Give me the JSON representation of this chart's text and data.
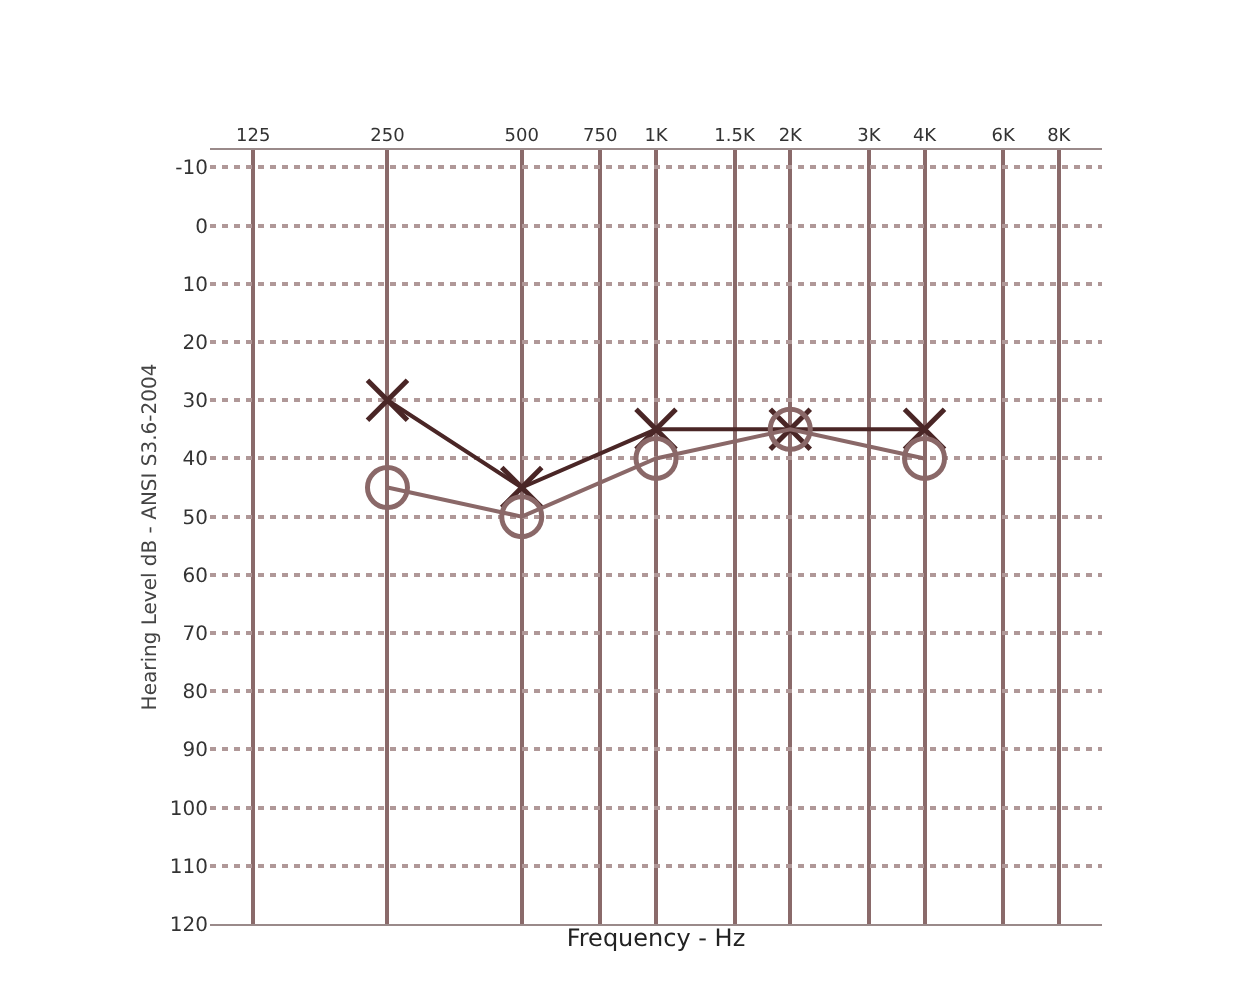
{
  "chart_data": {
    "type": "line",
    "xlabel": "Frequency - Hz",
    "ylabel": "Hearing Level dB - ANSI S3.6-2004",
    "x": [
      250,
      500,
      1000,
      2000,
      4000
    ],
    "series": [
      {
        "color": "#4a2626",
        "values": [
          30,
          45,
          35,
          35,
          35
        ],
        "marker": "cross"
      },
      {
        "color": "#8a6868",
        "values": [
          45,
          50,
          40,
          35,
          40
        ],
        "marker": "circle"
      }
    ],
    "log": "x",
    "xlim": [
      100,
      10000
    ],
    "xticks": [
      125,
      250,
      500,
      750,
      {
        "value": 1000,
        "label": "1K"
      },
      {
        "value": 1500,
        "label": "1.5K"
      },
      {
        "value": 2000,
        "label": "2K"
      },
      {
        "value": 3000,
        "label": "3K"
      },
      {
        "value": 4000,
        "label": "4K"
      },
      {
        "value": 6000,
        "label": "6K"
      },
      {
        "value": 8000,
        "label": "8K"
      }
    ],
    "ylim": [
      120,
      -13
    ],
    "yticks": [
      -10,
      0,
      10,
      20,
      30,
      40,
      50,
      60,
      70,
      80,
      90,
      100,
      110,
      120
    ],
    "grid": true,
    "line_style": "solid"
  }
}
